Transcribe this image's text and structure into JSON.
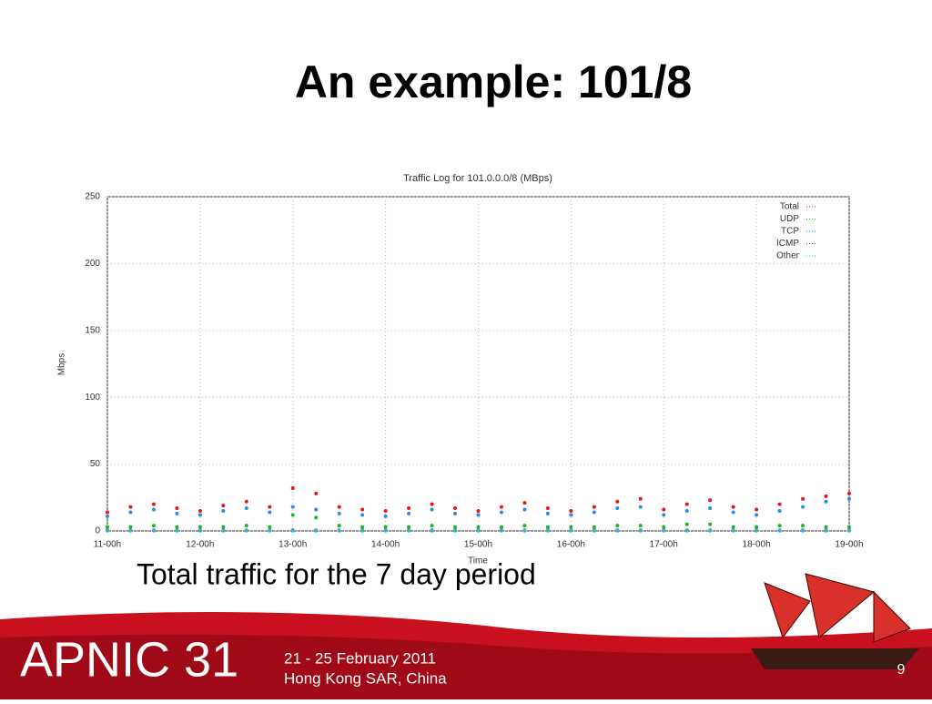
{
  "slide": {
    "title": "An example: 101/8",
    "caption": "Total traffic for the 7 day period",
    "footer_logo": "APNIC 31",
    "footer_dates": "21 - 25 February 2011",
    "footer_location": "Hong Kong SAR, China",
    "page_number": "9"
  },
  "chart_data": {
    "type": "scatter",
    "title": "Traffic Log for 101.0.0.0/8 (MBps)",
    "x_label": "Time",
    "y_label": "Mbps",
    "x": [
      11,
      11.25,
      11.5,
      11.75,
      12,
      12.25,
      12.5,
      12.75,
      13,
      13.25,
      13.5,
      13.75,
      14,
      14.25,
      14.5,
      14.75,
      15,
      15.25,
      15.5,
      15.75,
      16,
      16.25,
      16.5,
      16.75,
      17,
      17.25,
      17.5,
      17.75,
      18,
      18.25,
      18.5,
      18.75,
      19
    ],
    "series": [
      {
        "name": "Total",
        "color": "#e8141c",
        "values": [
          14,
          18,
          20,
          17,
          15,
          19,
          22,
          18,
          32,
          28,
          18,
          16,
          15,
          17,
          20,
          17,
          15,
          18,
          21,
          17,
          15,
          18,
          22,
          24,
          16,
          20,
          23,
          18,
          16,
          20,
          24,
          26,
          28
        ]
      },
      {
        "name": "UDP",
        "color": "#1fb51f",
        "values": [
          3,
          3,
          4,
          3,
          3,
          3,
          4,
          3,
          12,
          10,
          4,
          3,
          3,
          3,
          4,
          3,
          3,
          3,
          4,
          3,
          3,
          3,
          4,
          4,
          3,
          5,
          5,
          3,
          3,
          4,
          4,
          3,
          3
        ]
      },
      {
        "name": "TCP",
        "color": "#2a8ae8",
        "values": [
          11,
          14,
          16,
          13,
          12,
          15,
          17,
          14,
          18,
          16,
          13,
          12,
          11,
          13,
          16,
          13,
          12,
          14,
          16,
          13,
          12,
          14,
          17,
          18,
          12,
          15,
          17,
          14,
          12,
          15,
          18,
          22,
          24
        ]
      },
      {
        "name": "ICMP",
        "color": "#c020c0",
        "values": [
          0.5,
          0.5,
          0.5,
          0.5,
          0.5,
          0.5,
          0.5,
          0.5,
          0.5,
          0.5,
          0.5,
          0.5,
          0.5,
          0.5,
          0.5,
          0.5,
          0.5,
          0.5,
          0.5,
          0.5,
          0.5,
          0.5,
          0.5,
          0.5,
          0.5,
          0.5,
          0.5,
          0.5,
          0.5,
          0.5,
          0.5,
          0.5,
          0.5
        ]
      },
      {
        "name": "Other",
        "color": "#20c0c0",
        "values": [
          0.2,
          0.2,
          0.2,
          0.2,
          0.2,
          0.2,
          0.2,
          0.2,
          0.2,
          0.2,
          0.2,
          0.2,
          0.2,
          0.2,
          0.2,
          0.2,
          0.2,
          0.2,
          0.2,
          0.2,
          0.2,
          0.2,
          0.2,
          0.2,
          0.2,
          0.2,
          0.2,
          0.2,
          0.2,
          0.2,
          0.2,
          0.2,
          0.2
        ]
      }
    ],
    "xlim": [
      11,
      19
    ],
    "xticks": [
      {
        "value": 11,
        "label": "11-00h"
      },
      {
        "value": 12,
        "label": "12-00h"
      },
      {
        "value": 13,
        "label": "13-00h"
      },
      {
        "value": 14,
        "label": "14-00h"
      },
      {
        "value": 15,
        "label": "15-00h"
      },
      {
        "value": 16,
        "label": "16-00h"
      },
      {
        "value": 17,
        "label": "17-00h"
      },
      {
        "value": 18,
        "label": "18-00h"
      },
      {
        "value": 19,
        "label": "19-00h"
      }
    ],
    "ylim": [
      0,
      250
    ],
    "yticks": [
      0,
      50,
      100,
      150,
      200,
      250
    ],
    "grid": true,
    "legend": "top-right"
  }
}
